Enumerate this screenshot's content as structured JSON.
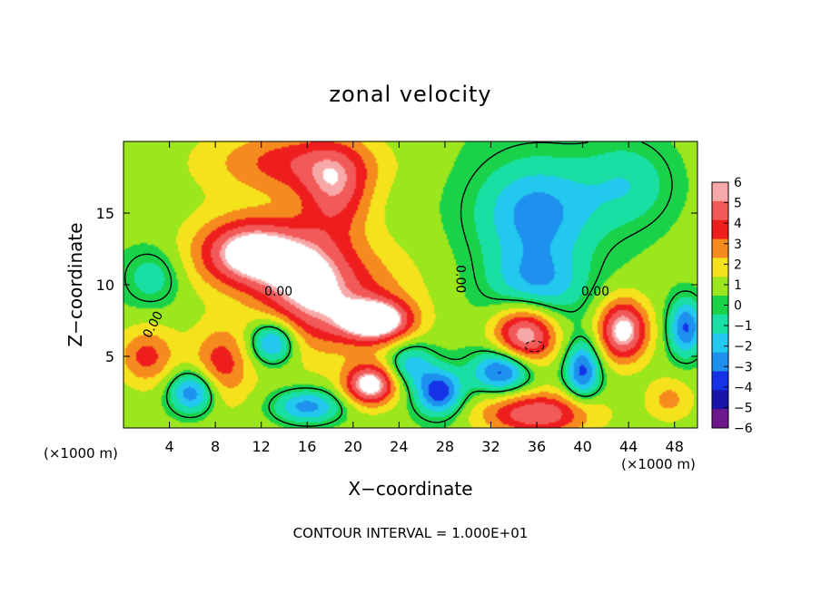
{
  "chart_data": {
    "type": "heatmap",
    "title": "zonal velocity",
    "xlabel": "X−coordinate",
    "ylabel": "Z−coordinate",
    "x_unit_label": "(×1000 m)",
    "x_unit_label_right": "(×1000 m)",
    "footer": "CONTOUR INTERVAL = 1.000E+01",
    "xlim": [
      0,
      50
    ],
    "ylim": [
      0,
      20
    ],
    "x_ticks": [
      4,
      8,
      12,
      16,
      20,
      24,
      28,
      32,
      36,
      40,
      44,
      48
    ],
    "y_ticks": [
      5,
      10,
      15
    ],
    "colorbar": {
      "vmin": -6,
      "vmax": 6,
      "ticks": [
        6,
        5,
        4,
        3,
        2,
        1,
        0,
        -1,
        -2,
        -3,
        -4,
        -5,
        -6
      ],
      "tick_labels": [
        "6",
        "5",
        "4",
        "3",
        "2",
        "1",
        "0",
        "−1",
        "−2",
        "−3",
        "−4",
        "−5",
        "−6"
      ],
      "colors": [
        "#f7a8a8",
        "#f25a5a",
        "#ee1e1e",
        "#f58a1e",
        "#f3e21c",
        "#9be61c",
        "#19d24a",
        "#19dfa5",
        "#23c8ee",
        "#1e91ee",
        "#1632e6",
        "#1a13a8",
        "#6a188c"
      ]
    },
    "contour_labels": [
      {
        "text": "0.00",
        "x": 13.5,
        "z": 9.5,
        "angle": 0
      },
      {
        "text": "0.00",
        "x": 29.3,
        "z": 10.4,
        "angle": 90
      },
      {
        "text": "0.00",
        "x": 41.1,
        "z": 9.5,
        "angle": 0
      },
      {
        "text": "0.00",
        "x": 2.6,
        "z": 7.2,
        "angle": -62
      }
    ],
    "features": [
      {
        "value": 3.0,
        "x": 15,
        "z": 18.5,
        "sx": 7,
        "sz": 2.2
      },
      {
        "value": 3.5,
        "x": 18.5,
        "z": 16.5,
        "sx": 3,
        "sz": 3
      },
      {
        "value": 6.0,
        "x": 11.0,
        "z": 12.2,
        "sx": 4.5,
        "sz": 2.4
      },
      {
        "value": 4.0,
        "x": 16.0,
        "z": 10.0,
        "sx": 4.0,
        "sz": 3.5
      },
      {
        "value": 6.0,
        "x": 22.0,
        "z": 7.5,
        "sx": 3.0,
        "sz": 1.4
      },
      {
        "value": 2.5,
        "x": 20.0,
        "z": 9.0,
        "sx": 6,
        "sz": 4
      },
      {
        "value": 6.0,
        "x": 35.0,
        "z": 6.5,
        "sx": 2.8,
        "sz": 2.2
      },
      {
        "value": 6.0,
        "x": 43.5,
        "z": 6.8,
        "sx": 2.2,
        "sz": 2.2
      },
      {
        "value": 6.0,
        "x": 21.5,
        "z": 3.0,
        "sx": 2.2,
        "sz": 1.4
      },
      {
        "value": 5.0,
        "x": 36.0,
        "z": 1.0,
        "sx": 5,
        "sz": 1.6
      },
      {
        "value": 3.0,
        "x": 8.5,
        "z": 4.5,
        "sx": 2.5,
        "sz": 2.5
      },
      {
        "value": 3.0,
        "x": 2.0,
        "z": 5.0,
        "sx": 2.5,
        "sz": 2.0
      },
      {
        "value": 2.0,
        "x": 47.5,
        "z": 2.0,
        "sx": 2.0,
        "sz": 1.5
      },
      {
        "value": -3.5,
        "x": 36.0,
        "z": 15.0,
        "sx": 5,
        "sz": 3.5
      },
      {
        "value": -3.0,
        "x": 36.0,
        "z": 10.0,
        "sx": 4,
        "sz": 2.5
      },
      {
        "value": -2.0,
        "x": 44.0,
        "z": 17.0,
        "sx": 4,
        "sz": 3.0
      },
      {
        "value": -5.0,
        "x": 33.0,
        "z": 4.0,
        "sx": 2.5,
        "sz": 1.5
      },
      {
        "value": -5.0,
        "x": 27.5,
        "z": 2.5,
        "sx": 2.0,
        "sz": 1.6
      },
      {
        "value": -4.5,
        "x": 13.0,
        "z": 6.0,
        "sx": 2.0,
        "sz": 1.5
      },
      {
        "value": -4.0,
        "x": 16.0,
        "z": 1.5,
        "sx": 3.0,
        "sz": 1.2
      },
      {
        "value": -4.5,
        "x": 6.0,
        "z": 2.5,
        "sx": 2.0,
        "sz": 1.5
      },
      {
        "value": -4.5,
        "x": 40.0,
        "z": 4.0,
        "sx": 1.5,
        "sz": 2.0
      },
      {
        "value": -4.5,
        "x": 49.0,
        "z": 7.0,
        "sx": 1.5,
        "sz": 2.0
      },
      {
        "value": -2.0,
        "x": 2.5,
        "z": 10.5,
        "sx": 2.5,
        "sz": 2.0
      },
      {
        "value": -3.0,
        "x": 25.0,
        "z": 4.5,
        "sx": 2.0,
        "sz": 1.5
      }
    ],
    "background_value": 0.8
  }
}
